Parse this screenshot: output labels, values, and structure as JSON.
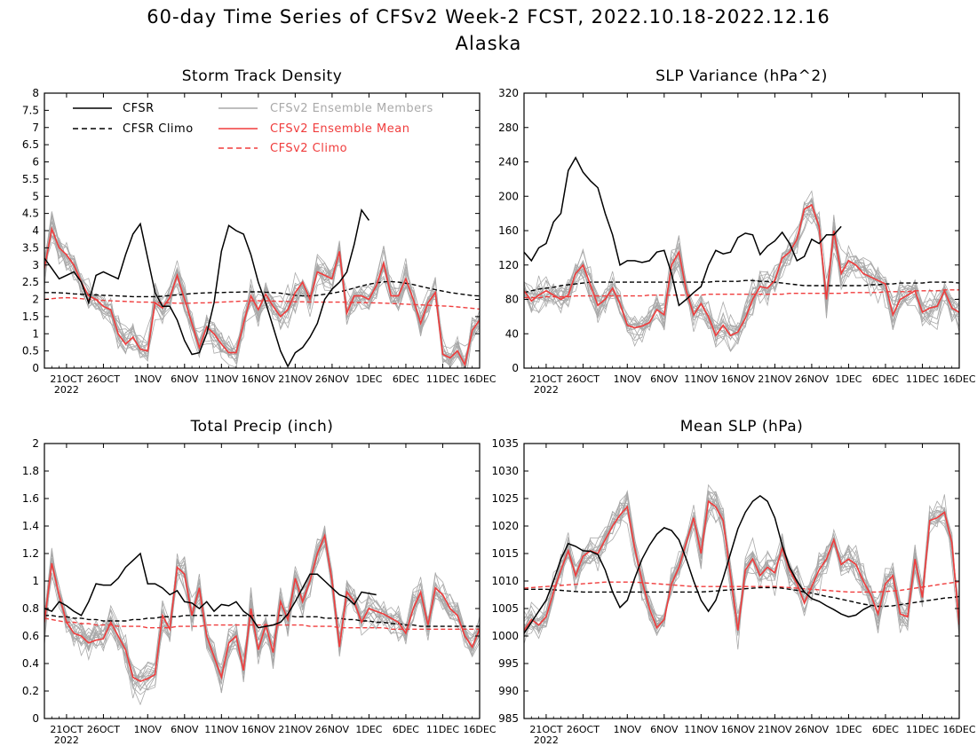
{
  "title": "60-day Time Series of CFSv2 Week-2 FCST, 2022.10.18-2022.12.16",
  "subtitle": "Alaska",
  "colors": {
    "cfsr": "#000000",
    "member": "#a9a9a9",
    "ens_mean": "#f03c3c",
    "frame": "#000000"
  },
  "x_ticks": [
    "21OCT",
    "26OCT",
    "1NOV",
    "6NOV",
    "11NOV",
    "16NOV",
    "21NOV",
    "26NOV",
    "1DEC",
    "6DEC",
    "11DEC",
    "16DEC"
  ],
  "x_year": "2022",
  "legend": {
    "cfsr": "CFSR",
    "cfsr_climo": "CFSR Climo",
    "members": "CFSv2 Ensemble Members",
    "ens_mean": "CFSv2 Ensemble Mean",
    "cfsv2_climo": "CFSv2 Climo"
  },
  "chart_data": [
    {
      "type": "line",
      "title": "Storm Track Density",
      "x_start": "2022-10-18",
      "x_end": "2022-12-16",
      "ylim": [
        0,
        8
      ],
      "yticks": [
        "0",
        "0.5",
        "1",
        "1.5",
        "2",
        "2.5",
        "3",
        "3.5",
        "4",
        "4.5",
        "5",
        "5.5",
        "6",
        "6.5",
        "7",
        "7.5",
        "8"
      ],
      "cfsr": [
        3.2,
        2.9,
        2.6,
        2.7,
        2.8,
        2.5,
        1.9,
        2.7,
        2.8,
        2.7,
        2.6,
        3.3,
        3.9,
        4.2,
        3.2,
        2.2,
        1.8,
        1.8,
        1.4,
        0.8,
        0.4,
        0.45,
        1.0,
        1.9,
        3.4,
        4.15,
        4.0,
        3.9,
        3.3,
        2.5,
        1.9,
        1.2,
        0.5,
        0.05,
        0.45,
        0.6,
        0.9,
        1.3,
        2.0,
        2.3,
        2.5,
        2.8,
        3.6,
        4.6,
        4.3
      ],
      "cfsr_climo": [
        2.2,
        2.2,
        2.19,
        2.18,
        2.16,
        2.15,
        2.14,
        2.13,
        2.12,
        2.11,
        2.1,
        2.09,
        2.08,
        2.08,
        2.08,
        2.08,
        2.09,
        2.11,
        2.13,
        2.15,
        2.17,
        2.18,
        2.19,
        2.2,
        2.2,
        2.21,
        2.21,
        2.22,
        2.22,
        2.22,
        2.21,
        2.2,
        2.18,
        2.15,
        2.12,
        2.1,
        2.1,
        2.12,
        2.15,
        2.18,
        2.22,
        2.27,
        2.33,
        2.39,
        2.44,
        2.48,
        2.51,
        2.52,
        2.5,
        2.47,
        2.43,
        2.38,
        2.33,
        2.28,
        2.24,
        2.2,
        2.17,
        2.14,
        2.11,
        2.1
      ],
      "ens_mean": [
        2.9,
        4.05,
        3.5,
        3.3,
        3.0,
        2.5,
        2.1,
        2.0,
        1.8,
        1.7,
        1.0,
        0.7,
        0.9,
        0.55,
        0.5,
        1.9,
        1.75,
        2.05,
        2.7,
        2.0,
        1.3,
        0.6,
        1.2,
        1.0,
        0.7,
        0.45,
        0.45,
        1.3,
        2.1,
        1.7,
        2.15,
        1.8,
        1.5,
        1.7,
        2.2,
        2.5,
        2.0,
        2.8,
        2.7,
        2.6,
        3.4,
        1.6,
        2.1,
        2.1,
        2.0,
        2.4,
        3.05,
        2.1,
        2.1,
        2.6,
        2.0,
        1.3,
        1.9,
        2.2,
        0.4,
        0.3,
        0.5,
        0.1,
        1.1,
        1.4
      ],
      "cfsv2_climo": [
        2.0,
        2.02,
        2.04,
        2.05,
        2.04,
        2.02,
        2.0,
        1.99,
        1.97,
        1.96,
        1.95,
        1.94,
        1.93,
        1.92,
        1.92,
        1.91,
        1.9,
        1.9,
        1.89,
        1.89,
        1.89,
        1.9,
        1.9,
        1.91,
        1.92,
        1.93,
        1.94,
        1.95,
        1.96,
        1.96,
        1.96,
        1.95,
        1.94,
        1.94,
        1.93,
        1.93,
        1.92,
        1.92,
        1.92,
        1.92,
        1.92,
        1.92,
        1.91,
        1.91,
        1.9,
        1.9,
        1.89,
        1.88,
        1.87,
        1.86,
        1.85,
        1.84,
        1.83,
        1.82,
        1.81,
        1.8,
        1.78,
        1.76,
        1.74,
        1.72
      ]
    },
    {
      "type": "line",
      "title": "SLP Variance (hPa^2)",
      "x_start": "2022-10-18",
      "x_end": "2022-12-16",
      "ylim": [
        0,
        320
      ],
      "yticks": [
        "0",
        "40",
        "80",
        "120",
        "160",
        "200",
        "240",
        "280",
        "320"
      ],
      "cfsr": [
        135,
        125,
        140,
        145,
        170,
        180,
        230,
        245,
        228,
        218,
        210,
        180,
        155,
        120,
        125,
        125,
        123,
        125,
        135,
        137,
        110,
        73,
        80,
        88,
        95,
        120,
        137,
        133,
        135,
        152,
        157,
        155,
        132,
        142,
        148,
        158,
        145,
        125,
        130,
        150,
        145,
        155,
        155,
        165
      ],
      "cfsr_climo": [
        88,
        90,
        92,
        93,
        94,
        96,
        97,
        98,
        99,
        100,
        100,
        100,
        100,
        100,
        100,
        100,
        100,
        100,
        100,
        100,
        100,
        100,
        100,
        100,
        100,
        100,
        101,
        101,
        101,
        101,
        102,
        102,
        101,
        101,
        100,
        99,
        98,
        97,
        96,
        96,
        96,
        96,
        96,
        96,
        96,
        96,
        96,
        97,
        97,
        98,
        98,
        99,
        99,
        99,
        99,
        100,
        100,
        100,
        100,
        99
      ],
      "ens_mean": [
        90,
        78,
        85,
        90,
        85,
        80,
        85,
        110,
        120,
        97,
        73,
        80,
        93,
        75,
        50,
        47,
        49,
        53,
        68,
        62,
        120,
        135,
        90,
        62,
        75,
        60,
        38,
        50,
        38,
        42,
        58,
        80,
        95,
        93,
        102,
        128,
        135,
        150,
        185,
        190,
        165,
        80,
        160,
        110,
        125,
        120,
        110,
        106,
        102,
        98,
        62,
        80,
        85,
        90,
        65,
        70,
        72,
        90,
        70,
        65
      ],
      "cfsv2_climo": [
        82,
        82,
        82,
        83,
        83,
        83,
        83,
        84,
        84,
        84,
        84,
        84,
        84,
        84,
        84,
        84,
        84,
        85,
        85,
        85,
        85,
        85,
        85,
        85,
        85,
        86,
        86,
        86,
        86,
        86,
        86,
        86,
        86,
        86,
        86,
        86,
        87,
        87,
        87,
        87,
        87,
        87,
        87,
        87,
        88,
        88,
        88,
        88,
        88,
        89,
        89,
        89,
        89,
        90,
        90,
        90,
        90,
        91,
        91,
        91
      ]
    },
    {
      "type": "line",
      "title": "Total Precip (inch)",
      "x_start": "2022-10-18",
      "x_end": "2022-12-16",
      "ylim": [
        0,
        2
      ],
      "yticks": [
        "0",
        "0.2",
        "0.4",
        "0.6",
        "0.8",
        "1",
        "1.2",
        "1.4",
        "1.6",
        "1.8",
        "2"
      ],
      "cfsr": [
        0.8,
        0.78,
        0.85,
        0.82,
        0.78,
        0.75,
        0.85,
        0.98,
        0.97,
        0.97,
        1.02,
        1.1,
        1.15,
        1.2,
        0.98,
        0.98,
        0.95,
        0.9,
        0.93,
        0.85,
        0.84,
        0.8,
        0.85,
        0.78,
        0.83,
        0.82,
        0.85,
        0.78,
        0.74,
        0.66,
        0.67,
        0.68,
        0.7,
        0.76,
        0.85,
        0.95,
        1.05,
        1.05,
        1.0,
        0.95,
        0.9,
        0.88,
        0.83,
        0.92,
        0.91,
        0.9
      ],
      "cfsr_climo": [
        0.75,
        0.75,
        0.74,
        0.74,
        0.73,
        0.73,
        0.72,
        0.72,
        0.71,
        0.71,
        0.71,
        0.71,
        0.72,
        0.72,
        0.73,
        0.73,
        0.74,
        0.74,
        0.74,
        0.75,
        0.75,
        0.75,
        0.75,
        0.75,
        0.75,
        0.75,
        0.75,
        0.75,
        0.75,
        0.75,
        0.75,
        0.75,
        0.75,
        0.75,
        0.74,
        0.74,
        0.74,
        0.74,
        0.73,
        0.73,
        0.73,
        0.72,
        0.72,
        0.71,
        0.71,
        0.7,
        0.7,
        0.69,
        0.69,
        0.68,
        0.68,
        0.67,
        0.67,
        0.67,
        0.67,
        0.67,
        0.67,
        0.67,
        0.67,
        0.67
      ],
      "ens_mean": [
        0.7,
        1.13,
        0.9,
        0.7,
        0.62,
        0.6,
        0.55,
        0.57,
        0.58,
        0.7,
        0.6,
        0.5,
        0.3,
        0.27,
        0.29,
        0.32,
        0.75,
        0.65,
        1.1,
        1.05,
        0.75,
        0.95,
        0.6,
        0.45,
        0.3,
        0.55,
        0.6,
        0.35,
        0.8,
        0.5,
        0.68,
        0.48,
        0.85,
        0.72,
        1.02,
        0.85,
        1.0,
        1.2,
        1.33,
        1.0,
        0.52,
        0.92,
        0.85,
        0.7,
        0.8,
        0.78,
        0.76,
        0.73,
        0.7,
        0.62,
        0.8,
        0.92,
        0.68,
        0.95,
        0.9,
        0.8,
        0.75,
        0.6,
        0.52,
        0.65
      ],
      "cfsv2_climo": [
        0.73,
        0.72,
        0.71,
        0.7,
        0.7,
        0.69,
        0.69,
        0.68,
        0.68,
        0.68,
        0.67,
        0.67,
        0.67,
        0.67,
        0.66,
        0.66,
        0.66,
        0.66,
        0.67,
        0.67,
        0.67,
        0.67,
        0.68,
        0.68,
        0.68,
        0.68,
        0.68,
        0.68,
        0.68,
        0.68,
        0.68,
        0.68,
        0.68,
        0.68,
        0.68,
        0.68,
        0.67,
        0.67,
        0.67,
        0.67,
        0.66,
        0.66,
        0.66,
        0.66,
        0.66,
        0.66,
        0.66,
        0.65,
        0.65,
        0.65,
        0.65,
        0.65,
        0.65,
        0.65,
        0.65,
        0.65,
        0.65,
        0.65,
        0.65,
        0.65
      ]
    },
    {
      "type": "line",
      "title": "Mean SLP (hPa)",
      "x_start": "2022-10-18",
      "x_end": "2022-12-16",
      "ylim": [
        985,
        1035
      ],
      "yticks": [
        "985",
        "990",
        "995",
        "1000",
        "1005",
        "1010",
        "1015",
        "1020",
        "1025",
        "1030",
        "1035"
      ],
      "cfsr": [
        1000.5,
        1002.5,
        1004.5,
        1006.5,
        1010.0,
        1014.0,
        1016.8,
        1016.3,
        1015.5,
        1015.4,
        1014.8,
        1012.0,
        1008.0,
        1005.2,
        1006.5,
        1010.5,
        1014.0,
        1016.5,
        1018.5,
        1019.7,
        1019.2,
        1017.5,
        1014.0,
        1010.0,
        1006.5,
        1004.5,
        1006.5,
        1010.5,
        1015.0,
        1019.5,
        1022.5,
        1024.5,
        1025.5,
        1024.5,
        1021.5,
        1016.5,
        1012.5,
        1010.0,
        1008.0,
        1006.8,
        1006.3,
        1005.5,
        1004.8,
        1004.0,
        1003.5,
        1003.8,
        1004.8,
        1005.5
      ],
      "cfsr_climo": [
        1008.5,
        1008.5,
        1008.5,
        1008.5,
        1008.4,
        1008.3,
        1008.2,
        1008.1,
        1008.0,
        1008.0,
        1008.0,
        1008.0,
        1008.0,
        1008.0,
        1008.0,
        1008.0,
        1008.0,
        1008.0,
        1008.0,
        1008.0,
        1008.0,
        1008.0,
        1008.0,
        1008.0,
        1008.0,
        1008.1,
        1008.2,
        1008.3,
        1008.4,
        1008.5,
        1008.6,
        1008.7,
        1008.8,
        1008.8,
        1008.8,
        1008.7,
        1008.5,
        1008.3,
        1008.0,
        1007.8,
        1007.5,
        1007.2,
        1007.0,
        1006.7,
        1006.4,
        1006.1,
        1005.8,
        1005.6,
        1005.4,
        1005.4,
        1005.5,
        1005.7,
        1005.9,
        1006.1,
        1006.3,
        1006.5,
        1006.7,
        1006.9,
        1007.0,
        1007.2
      ],
      "ens_mean": [
        1001.0,
        1003.0,
        1002.0,
        1003.5,
        1008.0,
        1012.0,
        1015.5,
        1011.0,
        1014.5,
        1015.5,
        1015.0,
        1017.5,
        1020.0,
        1022.0,
        1023.5,
        1016.0,
        1010.0,
        1005.0,
        1001.5,
        1003.0,
        1009.5,
        1012.5,
        1017.0,
        1021.5,
        1015.0,
        1024.5,
        1023.5,
        1021.0,
        1011.0,
        1001.0,
        1012.0,
        1014.0,
        1011.0,
        1012.5,
        1011.5,
        1016.0,
        1012.0,
        1009.5,
        1006.0,
        1009.0,
        1012.0,
        1014.0,
        1017.5,
        1013.0,
        1014.0,
        1013.0,
        1010.0,
        1007.5,
        1004.0,
        1009.5,
        1011.0,
        1004.0,
        1003.5,
        1014.0,
        1007.0,
        1021.0,
        1021.5,
        1022.5,
        1017.0,
        1002.0
      ],
      "cfsv2_climo": [
        1008.7,
        1008.8,
        1008.9,
        1009.0,
        1009.1,
        1009.2,
        1009.3,
        1009.4,
        1009.5,
        1009.6,
        1009.7,
        1009.8,
        1009.8,
        1009.8,
        1009.8,
        1009.8,
        1009.7,
        1009.6,
        1009.5,
        1009.4,
        1009.3,
        1009.2,
        1009.1,
        1009.0,
        1009.0,
        1009.0,
        1009.0,
        1009.0,
        1009.0,
        1009.0,
        1009.0,
        1009.0,
        1009.0,
        1009.0,
        1009.0,
        1008.9,
        1008.8,
        1008.7,
        1008.6,
        1008.5,
        1008.4,
        1008.3,
        1008.2,
        1008.1,
        1008.0,
        1008.0,
        1008.0,
        1008.0,
        1008.0,
        1008.1,
        1008.2,
        1008.3,
        1008.5,
        1008.7,
        1008.9,
        1009.1,
        1009.3,
        1009.5,
        1009.7,
        1009.9
      ]
    }
  ]
}
